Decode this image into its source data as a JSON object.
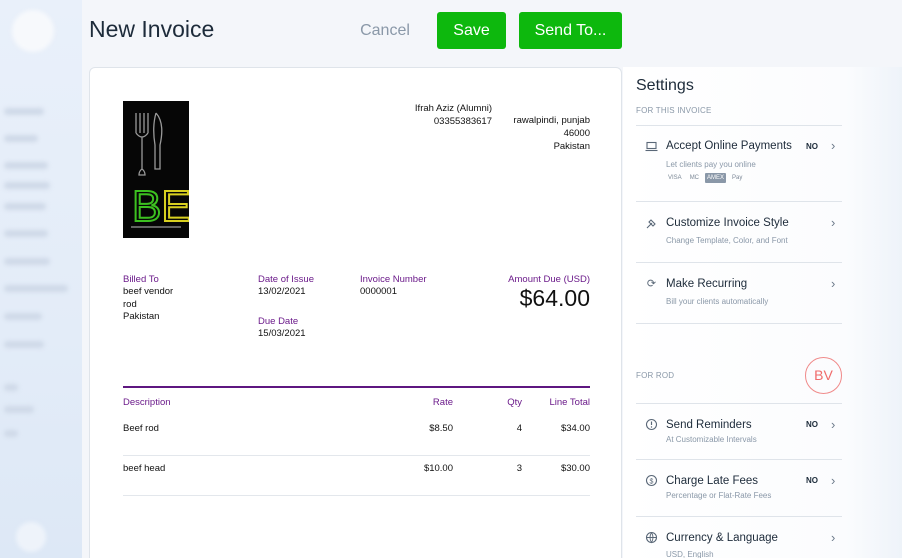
{
  "header": {
    "title": "New Invoice",
    "cancel_label": "Cancel",
    "save_label": "Save",
    "send_label": "Send To..."
  },
  "invoice": {
    "logo_text": "BE",
    "from": {
      "name": "Ifrah Aziz (Alumni)",
      "phone": "03355383617",
      "city_region": "rawalpindi,  punjab",
      "postal": "46000",
      "country": "Pakistan"
    },
    "billed_to": {
      "label": "Billed To",
      "line1": "beef vendor",
      "line2": "rod",
      "line3": "Pakistan"
    },
    "date_of_issue": {
      "label": "Date of Issue",
      "value": "13/02/2021"
    },
    "due_date": {
      "label": "Due Date",
      "value": "15/03/2021"
    },
    "invoice_number": {
      "label": "Invoice Number",
      "value": "0000001"
    },
    "amount_due": {
      "label": "Amount Due (USD)",
      "value": "$64.00"
    },
    "columns": {
      "description": "Description",
      "rate": "Rate",
      "qty": "Qty",
      "line_total": "Line Total"
    },
    "lines": [
      {
        "description": "Beef rod",
        "rate": "$8.50",
        "qty": "4",
        "total": "$34.00"
      },
      {
        "description": "beef head",
        "rate": "$10.00",
        "qty": "3",
        "total": "$30.00"
      }
    ]
  },
  "settings": {
    "title": "Settings",
    "section_invoice": "FOR THIS INVOICE",
    "accept_payments": {
      "title": "Accept Online Payments",
      "subtitle": "Let clients pay you online",
      "status": "NO",
      "cards": [
        "VISA",
        "MC",
        "AMEX",
        "Pay"
      ]
    },
    "customize_style": {
      "title": "Customize Invoice Style",
      "subtitle": "Change Template, Color, and Font"
    },
    "make_recurring": {
      "title": "Make Recurring",
      "subtitle": "Bill your clients automatically"
    },
    "section_client": "FOR ROD",
    "client_initials": "BV",
    "send_reminders": {
      "title": "Send Reminders",
      "subtitle": "At Customizable Intervals",
      "status": "NO"
    },
    "late_fees": {
      "title": "Charge Late Fees",
      "subtitle": "Percentage or Flat-Rate Fees",
      "status": "NO"
    },
    "currency_language": {
      "title": "Currency & Language",
      "subtitle": "USD, English"
    }
  },
  "colors": {
    "accent_green": "#0db80d",
    "invoice_purple": "#6b1a8a",
    "client_badge": "#f06b6b"
  }
}
